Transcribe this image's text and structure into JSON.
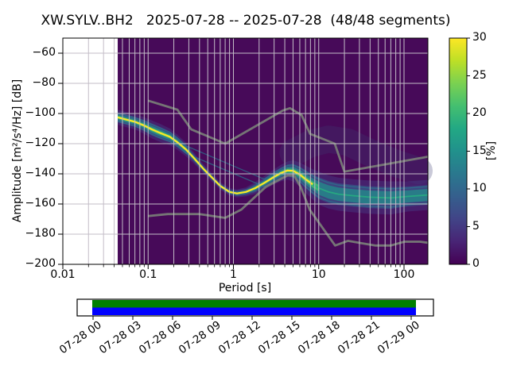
{
  "title": "XW.SYLV..BH2   2025-07-28 -- 2025-07-28  (48/48 segments)",
  "axes": {
    "xlabel": "Period [s]",
    "ylabel": "Amplitude [m²/s⁴/Hz] [dB]",
    "x_tick_labels": [
      "0.01",
      "0.1",
      "1",
      "10",
      "100"
    ],
    "y_tick_labels": [
      "−60",
      "−80",
      "−100",
      "−120",
      "−140",
      "−160",
      "−180",
      "−200"
    ]
  },
  "colorbar": {
    "label": "[%]",
    "tick_labels": [
      "0",
      "5",
      "10",
      "15",
      "20",
      "25",
      "30"
    ],
    "tick_values": [
      0,
      5,
      10,
      15,
      20,
      25,
      30
    ],
    "range": [
      0,
      30
    ],
    "gradient": [
      "#440154",
      "#482475",
      "#414487",
      "#355f8d",
      "#2a788e",
      "#21918c",
      "#22a884",
      "#44bf70",
      "#7ad151",
      "#bddf26",
      "#fde725"
    ]
  },
  "timeline": {
    "tick_labels": [
      "07-28 00",
      "07-28 03",
      "07-28 06",
      "07-28 09",
      "07-28 12",
      "07-28 15",
      "07-28 18",
      "07-28 21",
      "07-29 00"
    ],
    "bar_top_color": "#008000",
    "bar_bottom_color": "#0000ff"
  },
  "chart_data": {
    "type": "heatmap",
    "title": "XW.SYLV..BH2 2025-07-28 -- 2025-07-28 (48/48 segments)",
    "station": "XW.SYLV..BH2",
    "date_range": "2025-07-28 -- 2025-07-28",
    "segments": "48/48",
    "xlabel": "Period [s]",
    "ylabel": "Amplitude [m²/s⁴/Hz] [dB]",
    "x_scale": "log",
    "xlim": [
      0.01,
      190
    ],
    "ylim": [
      -200,
      -50
    ],
    "x_ticks": [
      0.01,
      0.1,
      1,
      10,
      100
    ],
    "y_ticks": [
      -60,
      -80,
      -100,
      -120,
      -140,
      -160,
      -180,
      -200
    ],
    "grid": true,
    "grid_color": "#c3bdc7",
    "background_color": "#470a59",
    "no_data_below_period_s": 0.044,
    "probability_range_pct": [
      0,
      30
    ],
    "density_colors": {
      "p30": "#fde725",
      "p20": "#44bf70",
      "p12": "#21918c",
      "p6": "#355f8d",
      "p2": "#453781"
    },
    "psd_mode_curve": {
      "comment": "ridge of the probability histogram (~30% bins) with half-width spread of the distribution in dB",
      "periods_s": [
        0.044,
        0.055,
        0.07,
        0.09,
        0.11,
        0.14,
        0.18,
        0.22,
        0.28,
        0.35,
        0.45,
        0.55,
        0.7,
        0.9,
        1.1,
        1.4,
        1.8,
        2.3,
        3.0,
        3.6,
        4.3,
        5.0,
        6.0,
        7.0,
        8.5,
        10.0,
        13.0,
        17.0,
        25.0,
        40.0,
        70.0,
        110.0,
        190.0
      ],
      "amplitude_db": [
        -102.5,
        -104,
        -105.5,
        -108,
        -110.5,
        -113,
        -115.5,
        -119,
        -124,
        -130,
        -137,
        -142,
        -148,
        -152,
        -153,
        -152,
        -149.5,
        -146,
        -142,
        -139.5,
        -137.8,
        -138,
        -140.5,
        -143.5,
        -147,
        -149.5,
        -152,
        -153.5,
        -154.5,
        -155.5,
        -156,
        -155,
        -154
      ],
      "spread_db": [
        5,
        5,
        5,
        5.5,
        6,
        6,
        5.5,
        5,
        4.5,
        3.5,
        3,
        2.8,
        2.5,
        2.5,
        2.7,
        3,
        4,
        4.5,
        5,
        5.5,
        6,
        7,
        8,
        9,
        10,
        11,
        11,
        11,
        11,
        11,
        11,
        10,
        10
      ]
    },
    "faint_haze": {
      "periods_s": [
        5,
        8,
        13,
        22,
        40,
        80,
        150
      ],
      "amplitude_db": [
        -126,
        -120,
        -117,
        -119,
        -126,
        -133,
        -138
      ],
      "half_width_db": 9
    },
    "noise_models": {
      "color": "#757575",
      "nhnm": {
        "periods_s": [
          0.1,
          0.22,
          0.32,
          0.8,
          3.8,
          4.6,
          6.3,
          7.9,
          15.4,
          20.0,
          190.0
        ],
        "amplitude_db": [
          -91.5,
          -97.4,
          -110.5,
          -120.0,
          -98.0,
          -96.5,
          -101.0,
          -113.5,
          -120.0,
          -138.5,
          -128.7
        ]
      },
      "nlnm": {
        "periods_s": [
          0.1,
          0.17,
          0.4,
          0.8,
          1.24,
          2.4,
          4.3,
          5.16,
          6.18,
          7.83,
          15.57,
          21.98,
          31.66,
          45.79,
          70.0,
          101.0,
          154.0,
          190.0
        ],
        "amplitude_db": [
          -168.0,
          -166.7,
          -166.7,
          -169.2,
          -163.7,
          -148.6,
          -141.1,
          -141.1,
          -149.0,
          -163.8,
          -187.5,
          -184.4,
          -186.0,
          -187.5,
          -187.5,
          -185.0,
          -185.0,
          -185.7
        ]
      }
    }
  }
}
